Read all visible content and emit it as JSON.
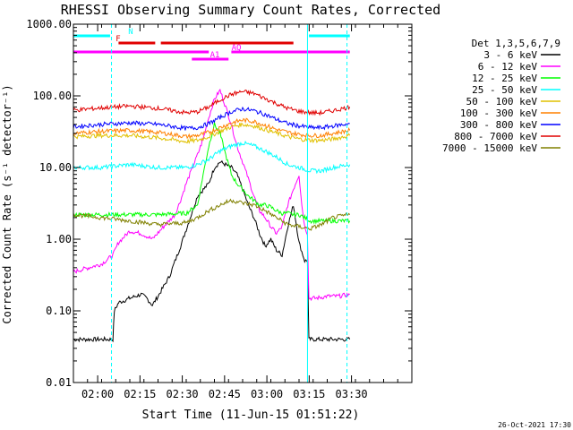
{
  "chart_data": {
    "type": "line",
    "title": "RHESSI Observing Summary Count Rates, Corrected",
    "xlabel": "Start Time (11-Jun-15 01:51:22)",
    "ylabel": "Corrected Count Rate (s⁻¹ detector⁻¹)",
    "yscale": "log",
    "ylim": [
      0.01,
      1000
    ],
    "xlim_min": [
      0,
      120
    ],
    "x_tick_labels": [
      "02:00",
      "02:15",
      "02:30",
      "02:45",
      "03:00",
      "03:15",
      "03:30"
    ],
    "x_tick_minutes": [
      8.6,
      23.6,
      38.6,
      53.6,
      68.6,
      83.6,
      98.6
    ],
    "y_ticks": [
      0.01,
      0.1,
      1,
      10,
      100,
      1000
    ],
    "y_tick_labels": [
      "0.01",
      "0.10",
      "1.00",
      "10.00",
      "100.00",
      "1000.00"
    ],
    "legend_title": "Det 1,3,5,6,7,9",
    "legend_placement": "right",
    "series": [
      {
        "name": "3 - 6 keV",
        "color": "#000000",
        "x": [
          0,
          14,
          14.5,
          16,
          20,
          24,
          26,
          28,
          30,
          34,
          38,
          44,
          48,
          50,
          52,
          56,
          58,
          60,
          62,
          64,
          66,
          68,
          70,
          72,
          74,
          76,
          78,
          80,
          82,
          83,
          83.5,
          84,
          86,
          90,
          94,
          96,
          98
        ],
        "y": [
          0.04,
          0.04,
          0.1,
          0.13,
          0.15,
          0.17,
          0.15,
          0.12,
          0.16,
          0.3,
          0.8,
          4,
          6,
          10,
          12,
          10,
          8,
          5,
          3,
          2,
          1.2,
          0.8,
          1,
          0.7,
          0.6,
          1.5,
          3,
          0.9,
          0.5,
          0.5,
          0.04,
          0.04,
          0.04,
          0.04,
          0.04,
          0.04,
          0.04
        ]
      },
      {
        "name": "6 - 12 keV",
        "color": "#ff00ff",
        "x": [
          0,
          10,
          14,
          16,
          20,
          24,
          28,
          32,
          36,
          38,
          40,
          44,
          46,
          48,
          50,
          52,
          54,
          56,
          58,
          60,
          62,
          64,
          66,
          68,
          70,
          72,
          74,
          76,
          78,
          80,
          81,
          82,
          83,
          83.5,
          84,
          86,
          90,
          94,
          98
        ],
        "y": [
          0.35,
          0.45,
          0.6,
          0.9,
          1.3,
          1.2,
          1.0,
          1.5,
          2.2,
          3.5,
          6,
          15,
          25,
          50,
          90,
          120,
          70,
          40,
          20,
          12,
          7,
          4,
          2.5,
          2,
          1.5,
          1.2,
          1.5,
          3,
          5,
          8,
          3,
          1.5,
          1.2,
          0.15,
          0.15,
          0.15,
          0.16,
          0.16,
          0.17
        ]
      },
      {
        "name": "12 - 25 keV",
        "color": "#00ff00",
        "x": [
          0,
          10,
          20,
          30,
          40,
          44,
          46,
          48,
          50,
          52,
          54,
          56,
          58,
          60,
          62,
          64,
          66,
          68,
          70,
          72,
          74,
          76,
          78,
          80,
          82,
          84,
          90,
          98
        ],
        "y": [
          2.2,
          2.2,
          2.2,
          2.2,
          2.3,
          3,
          8,
          20,
          40,
          30,
          15,
          8,
          6,
          5,
          4,
          3.5,
          3,
          3,
          2.8,
          2.5,
          2.3,
          2.3,
          2.2,
          2.2,
          2,
          1.8,
          1.8,
          1.8
        ]
      },
      {
        "name": "25 - 50 keV",
        "color": "#00ffff",
        "x": [
          0,
          10,
          20,
          30,
          40,
          44,
          48,
          52,
          56,
          60,
          64,
          68,
          72,
          76,
          80,
          84,
          88,
          92,
          98
        ],
        "y": [
          10,
          10,
          11,
          10,
          10,
          11,
          13,
          17,
          20,
          22,
          20,
          17,
          14,
          11,
          10,
          9,
          9,
          10,
          11
        ]
      },
      {
        "name": "50 - 100 keV",
        "color": "#e0c000",
        "x": [
          0,
          10,
          20,
          30,
          40,
          44,
          48,
          52,
          56,
          60,
          64,
          68,
          72,
          76,
          80,
          84,
          88,
          92,
          98
        ],
        "y": [
          27,
          28,
          28,
          26,
          23,
          24,
          27,
          32,
          37,
          40,
          38,
          34,
          30,
          27,
          25,
          24,
          24,
          25,
          28
        ]
      },
      {
        "name": "100 - 300 keV",
        "color": "#ff8000",
        "x": [
          0,
          10,
          20,
          30,
          40,
          44,
          48,
          52,
          56,
          60,
          64,
          68,
          72,
          76,
          80,
          84,
          88,
          92,
          98
        ],
        "y": [
          30,
          32,
          33,
          31,
          27,
          28,
          31,
          36,
          42,
          46,
          44,
          39,
          34,
          31,
          29,
          28,
          28,
          30,
          33
        ]
      },
      {
        "name": "300 - 800 keV",
        "color": "#0000ff",
        "x": [
          0,
          10,
          20,
          30,
          40,
          44,
          48,
          52,
          56,
          60,
          64,
          68,
          72,
          76,
          80,
          84,
          88,
          92,
          98
        ],
        "y": [
          37,
          40,
          42,
          40,
          35,
          36,
          41,
          50,
          60,
          66,
          62,
          55,
          47,
          41,
          38,
          36,
          36,
          38,
          41
        ]
      },
      {
        "name": "800 - 7000 keV",
        "color": "#e00000",
        "x": [
          0,
          10,
          20,
          30,
          40,
          44,
          48,
          52,
          56,
          60,
          64,
          68,
          72,
          76,
          80,
          84,
          88,
          92,
          98
        ],
        "y": [
          63,
          68,
          72,
          67,
          58,
          60,
          70,
          88,
          105,
          115,
          108,
          92,
          78,
          67,
          61,
          58,
          58,
          62,
          70
        ]
      },
      {
        "name": "7000 - 15000 keV",
        "color": "#808000",
        "x": [
          0,
          10,
          20,
          30,
          40,
          44,
          48,
          52,
          56,
          60,
          64,
          68,
          72,
          76,
          80,
          84,
          88,
          92,
          98
        ],
        "y": [
          2.2,
          2.0,
          1.8,
          1.6,
          1.7,
          2.0,
          2.5,
          3.0,
          3.5,
          3.2,
          3.0,
          2.5,
          2.0,
          1.6,
          1.5,
          1.4,
          1.6,
          2.0,
          2.2
        ]
      }
    ],
    "bands": [
      {
        "label": "N",
        "color": "#00ffff",
        "segments": [
          [
            0,
            13
          ],
          [
            83.5,
            98
          ]
        ]
      },
      {
        "label": "F",
        "color": "#e00000",
        "segments": [
          [
            16,
            29
          ],
          [
            31,
            78
          ]
        ]
      },
      {
        "label": "AQ",
        "color": "#ff00ff",
        "segments": [
          [
            0,
            48
          ],
          [
            56,
            98
          ]
        ]
      },
      {
        "label": "A1",
        "color": "#ff00ff",
        "segments": [
          [
            42,
            55
          ]
        ]
      }
    ],
    "vertical_lines": [
      {
        "minute": 0,
        "style": "solid"
      },
      {
        "minute": 13.5,
        "style": "dashed"
      },
      {
        "minute": 83,
        "style": "solid"
      },
      {
        "minute": 97,
        "style": "dashed"
      }
    ]
  },
  "footer": {
    "date_stamp": "26-Oct-2021 17:30"
  }
}
